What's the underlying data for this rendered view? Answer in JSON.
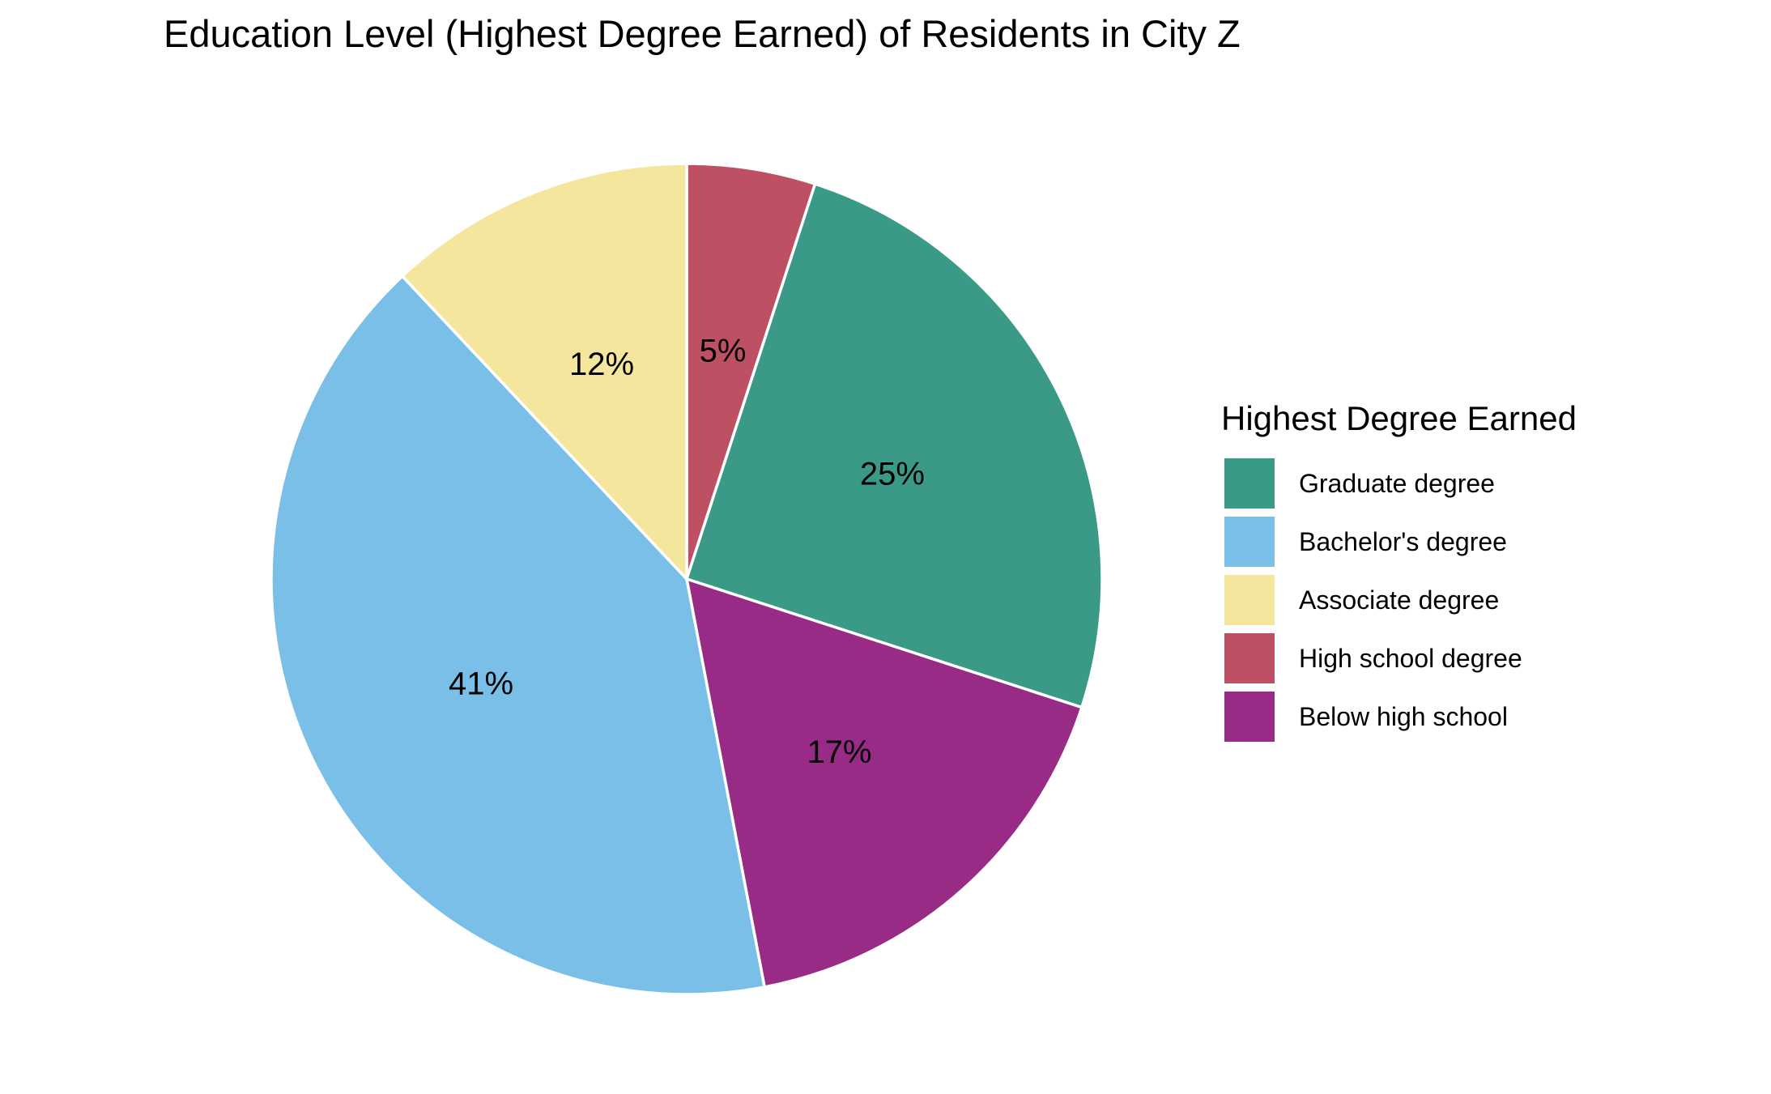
{
  "chart_data": {
    "type": "pie",
    "title": "Education Level (Highest Degree Earned) of Residents in City Z",
    "legend_title": "Highest Degree Earned",
    "legend_position": "right",
    "slices": [
      {
        "label": "Graduate degree",
        "value": 25,
        "display": "25%",
        "color": "#3a9a87"
      },
      {
        "label": "Bachelor's degree",
        "value": 41,
        "display": "41%",
        "color": "#79bfe8"
      },
      {
        "label": "Associate degree",
        "value": 12,
        "display": "12%",
        "color": "#f4e69d"
      },
      {
        "label": "High school degree",
        "value": 5,
        "display": "5%",
        "color": "#be5063"
      },
      {
        "label": "Below high school",
        "value": 17,
        "display": "17%",
        "color": "#972b85"
      }
    ],
    "draw_order_clockwise_from_top": [
      "High school degree",
      "Graduate degree",
      "Below high school",
      "Bachelor's degree",
      "Associate degree"
    ]
  }
}
